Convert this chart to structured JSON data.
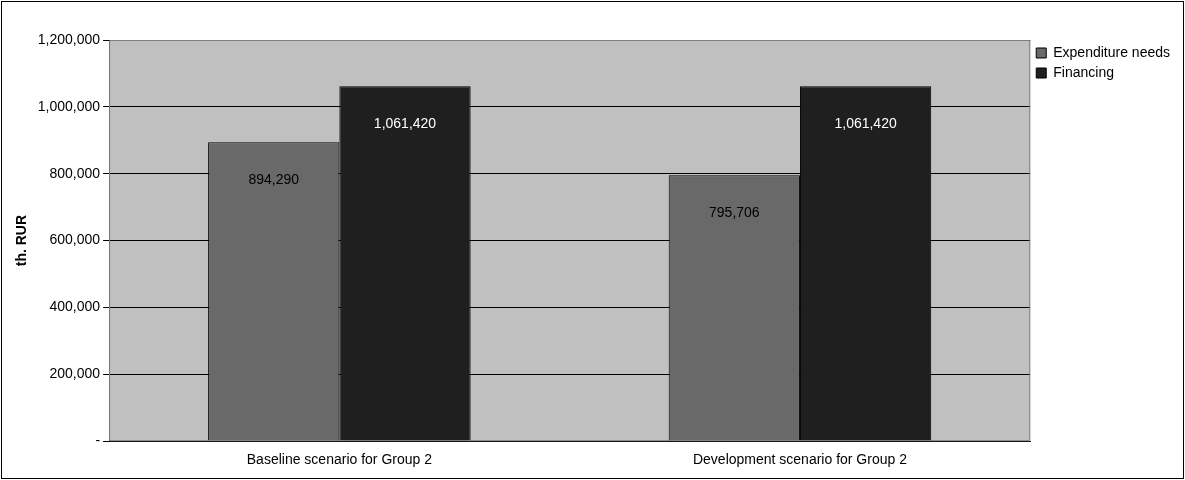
{
  "chart_data": {
    "type": "bar",
    "ylabel": "th. RUR",
    "categories": [
      "Baseline scenario for Group 2",
      "Development scenario for Group 2"
    ],
    "series": [
      {
        "name": "Expenditure needs",
        "color": "#696969",
        "values": [
          894290,
          795706
        ],
        "value_labels": [
          "894,290",
          "795,706"
        ]
      },
      {
        "name": "Financing",
        "color": "#1f1f1f",
        "values": [
          1061420,
          1061420
        ],
        "value_labels": [
          "1,061,420",
          "1,061,420"
        ]
      }
    ],
    "ylim": [
      0,
      1200000
    ],
    "yticks": [
      {
        "value": 0,
        "label": "-"
      },
      {
        "value": 200000,
        "label": "200,000"
      },
      {
        "value": 400000,
        "label": "400,000"
      },
      {
        "value": 600000,
        "label": "600,000"
      },
      {
        "value": 800000,
        "label": "800,000"
      },
      {
        "value": 1000000,
        "label": "1,000,000"
      },
      {
        "value": 1200000,
        "label": "1,200,000"
      }
    ],
    "grid": "y",
    "legend": "right"
  }
}
